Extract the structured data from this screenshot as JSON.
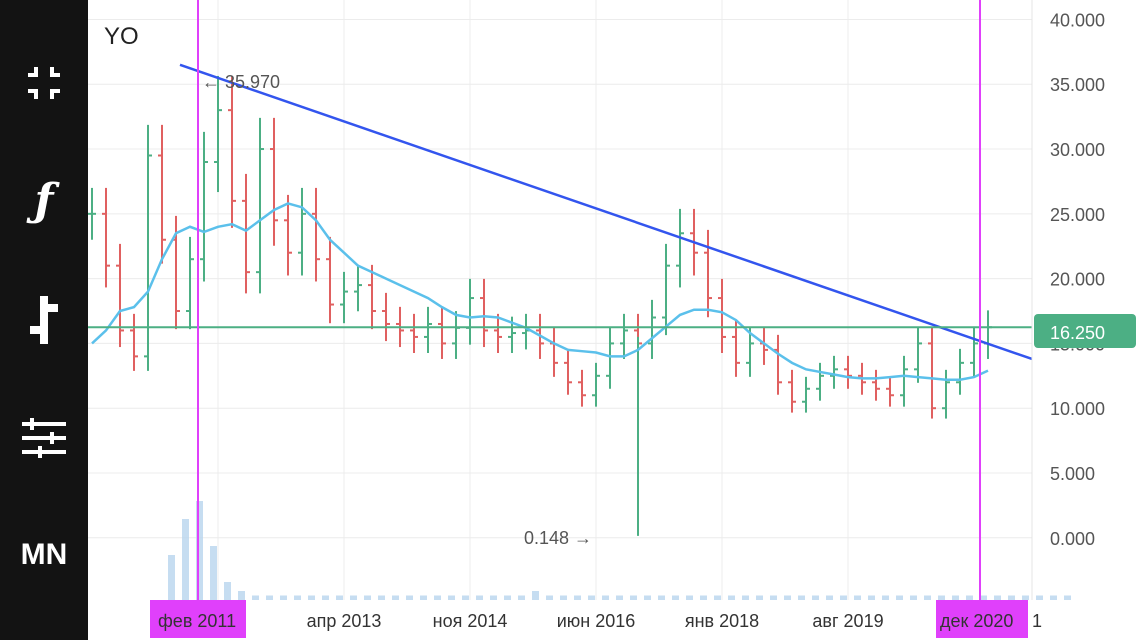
{
  "toolbar": {
    "items": [
      {
        "name": "fullscreen-exit-icon"
      },
      {
        "name": "function-icon",
        "glyph": "ƒ"
      },
      {
        "name": "bar-style-icon"
      },
      {
        "name": "settings-sliders-icon"
      },
      {
        "name": "mn-button",
        "label": "MN"
      }
    ],
    "background": "#131313"
  },
  "chart_data": {
    "type": "ohlc",
    "symbol": "YO",
    "y_ticks": [
      "40.000",
      "35.000",
      "30.000",
      "25.000",
      "20.000",
      "15.000",
      "10.000",
      "5.000",
      "0.000"
    ],
    "x_ticks": [
      "2011",
      "апр 2013",
      "ноя 2014",
      "июн 2016",
      "янв 2018",
      "авг 2019",
      "1"
    ],
    "ylim": [
      -4.8,
      41.5
    ],
    "current_price": {
      "value": 16.25,
      "label": "16.250",
      "color": "#4caf84"
    },
    "annotations": [
      {
        "text": "← 35.970",
        "value": 35.97,
        "kind": "high"
      },
      {
        "text": "0.148 →",
        "value": 0.148,
        "kind": "low"
      }
    ],
    "vertical_markers": [
      {
        "label": "фев 2011",
        "color": "#e040fb"
      },
      {
        "label": "дек 2020",
        "color": "#e040fb"
      }
    ],
    "trendline": {
      "from": 36.5,
      "to": 13.8,
      "color": "#3355ee"
    },
    "colors": {
      "up": "#4caf84",
      "down": "#e06060",
      "ma": "#5bc0eb",
      "volume": "#b8d4ee"
    },
    "ma_values": [
      15.0,
      16.0,
      17.5,
      17.8,
      19.0,
      21.5,
      23.5,
      24.0,
      23.6,
      24.0,
      24.2,
      23.7,
      24.5,
      25.3,
      25.8,
      25.5,
      24.5,
      23.0,
      22.0,
      21.0,
      20.5,
      20.0,
      19.5,
      19.0,
      18.5,
      17.8,
      17.2,
      17.0,
      17.1,
      17.0,
      16.6,
      16.2,
      15.6,
      15.0,
      14.5,
      14.4,
      14.3,
      14.0,
      14.0,
      14.5,
      15.4,
      16.3,
      17.2,
      17.6,
      17.6,
      17.4,
      16.8,
      15.8,
      15.0,
      14.2,
      13.5,
      13.0,
      12.8,
      12.6,
      12.4,
      12.3,
      12.3,
      12.4,
      12.5,
      12.4,
      12.3,
      12.2,
      12.2,
      12.4,
      12.9
    ],
    "close_values": [
      25.0,
      21.0,
      16.0,
      14.0,
      29.5,
      23.0,
      17.5,
      21.5,
      29.0,
      33.0,
      26.0,
      20.5,
      30.0,
      24.5,
      22.0,
      25.0,
      21.5,
      18.0,
      19.0,
      19.5,
      17.5,
      16.5,
      16.0,
      15.5,
      16.5,
      15.0,
      16.2,
      18.5,
      16.0,
      15.5,
      15.8,
      16.0,
      15.0,
      13.5,
      12.0,
      11.0,
      12.5,
      15.0,
      16.0,
      15.0,
      17.0,
      21.0,
      23.5,
      22.0,
      18.5,
      15.5,
      13.5,
      15.0,
      14.5,
      12.0,
      10.5,
      11.5,
      12.5,
      13.0,
      12.5,
      12.0,
      11.5,
      11.0,
      13.0,
      15.0,
      10.0,
      12.0,
      13.5,
      15.0,
      16.25
    ],
    "volume_values": [
      0.5,
      0.9,
      1.1,
      0.6,
      0.2,
      0.1,
      0.05,
      0.05,
      0.05,
      0.05,
      0.05,
      0.05,
      0.05,
      0.05,
      0.05,
      0.05,
      0.05,
      0.05,
      0.05,
      0.05,
      0.05,
      0.05,
      0.05,
      0.05,
      0.05,
      0.05,
      0.1,
      0.05,
      0.05,
      0.05,
      0.05,
      0.05,
      0.05,
      0.05,
      0.05,
      0.05,
      0.05,
      0.05,
      0.05,
      0.05,
      0.05,
      0.05,
      0.05,
      0.05,
      0.05,
      0.05,
      0.05,
      0.05,
      0.05,
      0.05,
      0.05,
      0.05,
      0.05,
      0.05,
      0.05,
      0.05,
      0.05,
      0.05,
      0.05,
      0.05,
      0.05,
      0.05,
      0.05,
      0.05,
      0.05
    ]
  }
}
